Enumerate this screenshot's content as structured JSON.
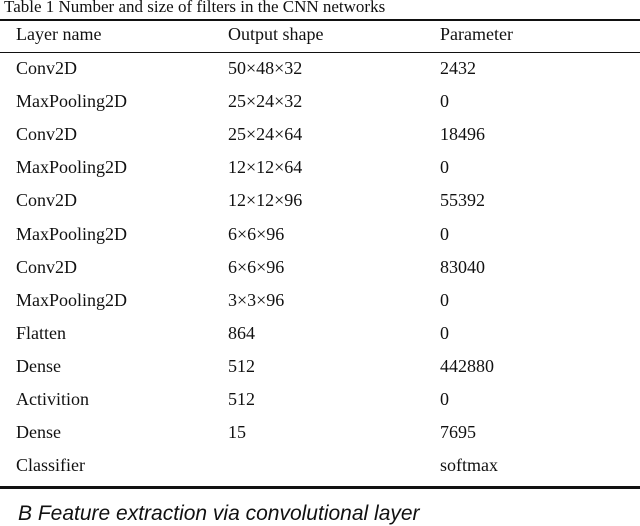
{
  "table": {
    "caption": "Table 1 Number and size of filters in the CNN networks",
    "columns": [
      "Layer name",
      "Output shape",
      "Parameter"
    ],
    "rows": [
      [
        "Conv2D",
        "50×48×32",
        "2432"
      ],
      [
        "MaxPooling2D",
        "25×24×32",
        "0"
      ],
      [
        "Conv2D",
        "25×24×64",
        "18496"
      ],
      [
        "MaxPooling2D",
        "12×12×64",
        "0"
      ],
      [
        "Conv2D",
        "12×12×96",
        "55392"
      ],
      [
        "MaxPooling2D",
        "6×6×96",
        "0"
      ],
      [
        "Conv2D",
        "6×6×96",
        "83040"
      ],
      [
        "MaxPooling2D",
        "3×3×96",
        "0"
      ],
      [
        "Flatten",
        "864",
        "0"
      ],
      [
        "Dense",
        "512",
        "442880"
      ],
      [
        "Activition",
        "512",
        "0"
      ],
      [
        "Dense",
        "15",
        "7695"
      ],
      [
        "Classifier",
        null,
        "softmax"
      ]
    ]
  },
  "section_heading": "B Feature extraction via convolutional layer"
}
